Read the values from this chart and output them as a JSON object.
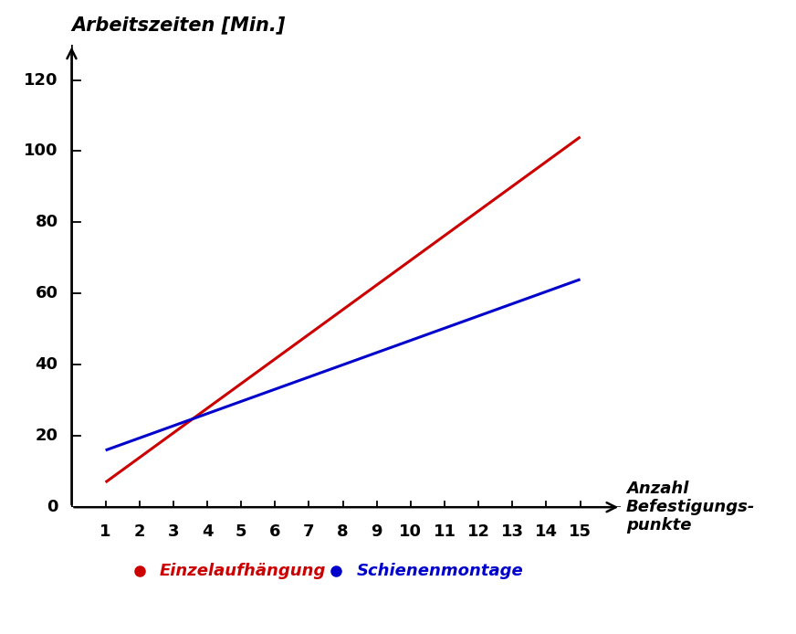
{
  "red_x": [
    1,
    15
  ],
  "red_y": [
    7,
    104
  ],
  "blue_x": [
    1,
    15
  ],
  "blue_y": [
    16,
    64
  ],
  "red_color": "#cc0000",
  "blue_color": "#0000cc",
  "x_ticks": [
    1,
    2,
    3,
    4,
    5,
    6,
    7,
    8,
    9,
    10,
    11,
    12,
    13,
    14,
    15
  ],
  "y_ticks": [
    20,
    40,
    60,
    80,
    100,
    120
  ],
  "xlim": [
    0.0,
    16.2
  ],
  "ylim": [
    0,
    130
  ],
  "ylabel": "Arbeitszeiten [Min.]",
  "xlabel_line1": "Anzahl",
  "xlabel_line2": "Befestigungs-",
  "xlabel_line3": "punkte",
  "legend_red": "Einzelaufhängung",
  "legend_blue": "Schienenmontage",
  "background_color": "#ffffff",
  "line_width": 2.2,
  "font_size_ylabel": 15,
  "font_size_xlabel": 13,
  "font_size_tick": 13,
  "font_size_legend": 13,
  "arrow_color": "#000000"
}
